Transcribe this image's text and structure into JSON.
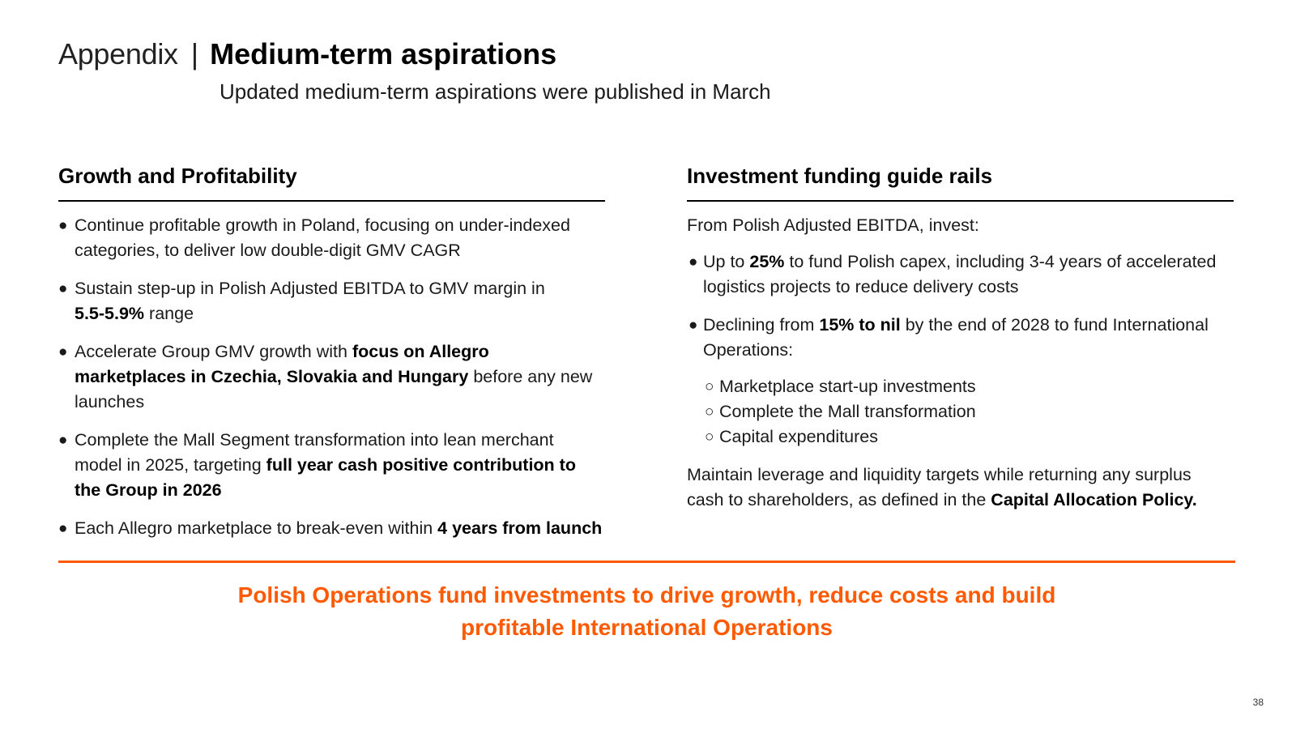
{
  "header": {
    "prefix": "Appendix",
    "separator": "|",
    "title": "Medium-term aspirations",
    "subtitle": "Updated medium-term aspirations were published in March"
  },
  "left": {
    "heading": "Growth and Profitability",
    "bullet_glyph": "●",
    "bullets": [
      {
        "t1": "Continue profitable growth in Poland, focusing on under-indexed categories, to deliver low double-digit GMV CAGR"
      },
      {
        "t1": "Sustain step-up in Polish Adjusted EBITDA to GMV margin in ",
        "b1": "5.5-5.9%",
        "t2": " range"
      },
      {
        "t1": "Accelerate Group GMV growth with ",
        "b1": "focus on Allegro marketplaces in Czechia, Slovakia and Hungary",
        "t2": " before any new launches"
      },
      {
        "t1": "Complete the Mall Segment transformation into lean merchant model in 2025, targeting ",
        "b1": "full year cash positive contribution to the Group in 2026"
      },
      {
        "t1": "Each Allegro marketplace to break-even within ",
        "b1": "4 years from launch"
      }
    ]
  },
  "right": {
    "heading": "Investment funding guide rails",
    "intro": "From Polish Adjusted EBITDA, invest:",
    "bullet_glyph": "●",
    "bullets": [
      {
        "t1": "Up to ",
        "b1": "25%",
        "t2": " to fund Polish capex, including 3-4 years of accelerated logistics projects to reduce delivery costs"
      },
      {
        "t1": "Declining from ",
        "b1": "15% to nil",
        "t2": " by the end of 2028 to fund International Operations:"
      }
    ],
    "sub_glyph": "○",
    "sub_bullets": [
      "Marketplace start-up investments",
      "Complete the Mall transformation",
      "Capital expenditures"
    ],
    "closing_text": "Maintain leverage and liquidity targets while returning any surplus cash to shareholders, as defined in the ",
    "closing_bold": "Capital Allocation Policy."
  },
  "footer": {
    "tagline_line1": "Polish Operations fund investments to drive growth, reduce costs and build",
    "tagline_line2": "profitable International Operations",
    "page_number": "38"
  },
  "colors": {
    "accent": "#ff5a00",
    "text": "#1a1a1a"
  }
}
